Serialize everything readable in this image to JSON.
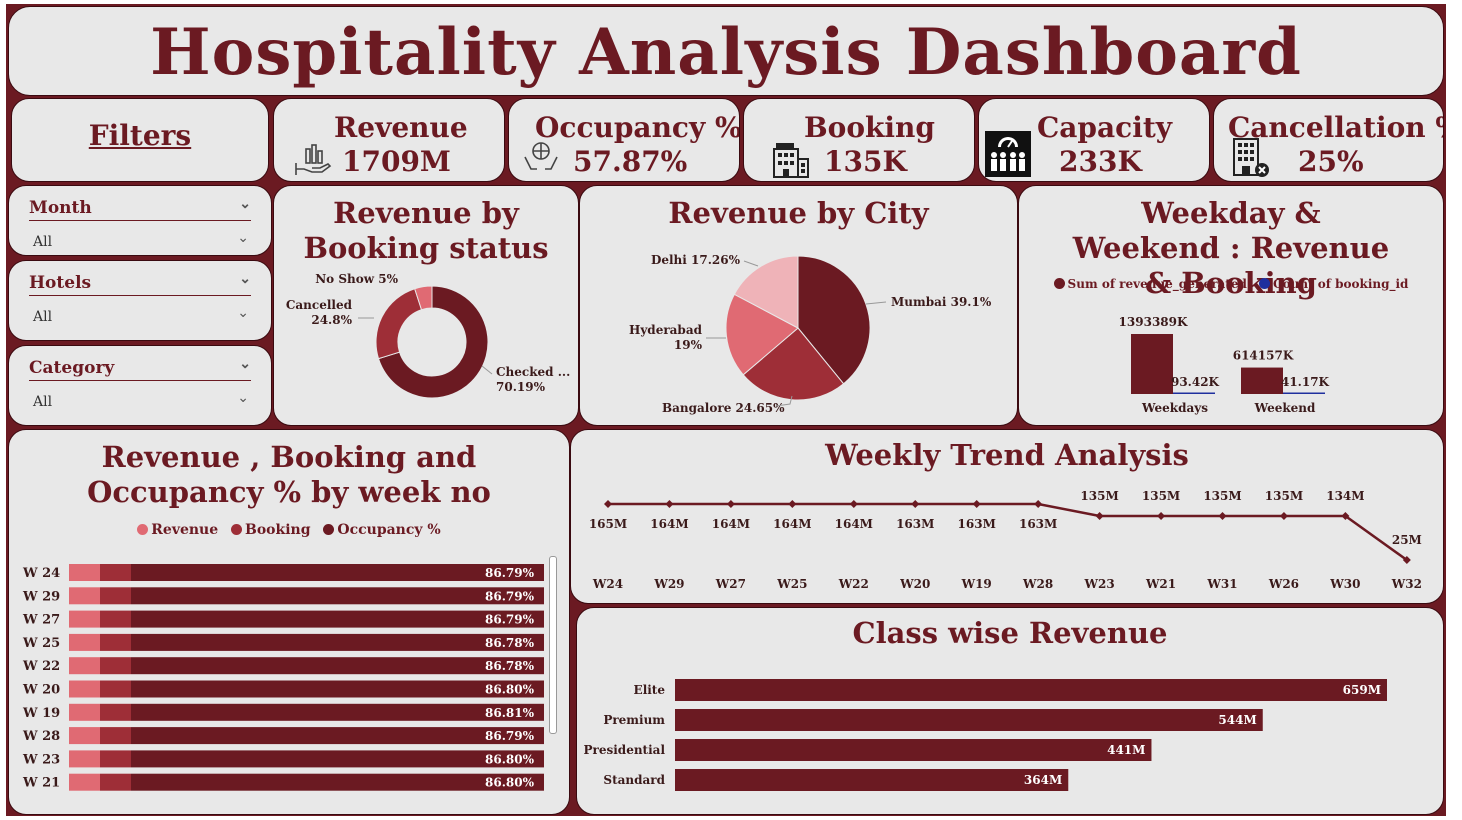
{
  "title": "Hospitality Analysis Dashboard",
  "colors": {
    "maroon": "#6b1a22",
    "mid": "#9e2e37",
    "light": "#e06a73",
    "pale": "#efb3b8",
    "blue": "#1f2f9e"
  },
  "filters": {
    "title": "Filters",
    "slicers": [
      {
        "label": "Month",
        "value": "All"
      },
      {
        "label": "Hotels",
        "value": "All"
      },
      {
        "label": "Category",
        "value": "All"
      }
    ]
  },
  "kpis": [
    {
      "label": "Revenue",
      "value": "1709M",
      "icon": "hand-money-icon"
    },
    {
      "label": "Occupancy %",
      "value": "57.87%",
      "icon": "globe-hands-icon"
    },
    {
      "label": "Booking",
      "value": "135K",
      "icon": "hotel-building-icon"
    },
    {
      "label": "Capacity",
      "value": "233K",
      "icon": "people-gauge-icon"
    },
    {
      "label": "Cancellation %",
      "value": "25%",
      "icon": "hotel-cancel-icon"
    }
  ],
  "chart_data": [
    {
      "id": "booking_status",
      "type": "donut",
      "title": "Revenue by Booking status",
      "slices": [
        {
          "label": "Checked ...",
          "value": 70.19,
          "display": "70.19%"
        },
        {
          "label": "Cancelled",
          "value": 24.8,
          "display": "24.8%"
        },
        {
          "label": "No Show",
          "value": 5,
          "display": "5%"
        }
      ]
    },
    {
      "id": "city",
      "type": "pie",
      "title": "Revenue by City",
      "slices": [
        {
          "label": "Mumbai",
          "value": 39.1,
          "display": "39.1%"
        },
        {
          "label": "Bangalore",
          "value": 24.65,
          "display": "24.65%"
        },
        {
          "label": "Hyderabad",
          "value": 19,
          "display": "19%"
        },
        {
          "label": "Delhi",
          "value": 17.26,
          "display": "17.26%"
        }
      ]
    },
    {
      "id": "weekday_weekend",
      "type": "bar",
      "title": "Weekday & Weekend : Revenue & Booking",
      "categories": [
        "Weekdays",
        "Weekend"
      ],
      "series": [
        {
          "name": "Sum of revenue_generated",
          "values": [
            1393389,
            614157
          ],
          "labels": [
            "1393389K",
            "614157K"
          ]
        },
        {
          "name": "Count of booking_id",
          "values": [
            93.42,
            41.17
          ],
          "labels": [
            "93.42K",
            "41.17K"
          ]
        }
      ]
    },
    {
      "id": "week_occupancy",
      "type": "bar",
      "orientation": "horizontal",
      "title": "Revenue , Booking and Occupancy % by week no",
      "legend": [
        "Revenue",
        "Booking",
        "Occupancy %"
      ],
      "categories": [
        "W 24",
        "W 29",
        "W 27",
        "W 25",
        "W 22",
        "W 20",
        "W 19",
        "W 28",
        "W 23",
        "W 21"
      ],
      "occupancy": [
        "86.79%",
        "86.79%",
        "86.79%",
        "86.78%",
        "86.78%",
        "86.80%",
        "86.81%",
        "86.79%",
        "86.80%",
        "86.80%"
      ]
    },
    {
      "id": "weekly_trend",
      "type": "line",
      "title": "Weekly Trend Analysis",
      "categories": [
        "W24",
        "W29",
        "W27",
        "W25",
        "W22",
        "W20",
        "W19",
        "W28",
        "W23",
        "W21",
        "W31",
        "W26",
        "W30",
        "W32"
      ],
      "values": [
        165,
        164,
        164,
        164,
        164,
        163,
        163,
        163,
        135,
        135,
        135,
        135,
        134,
        25
      ],
      "labels": [
        "165M",
        "164M",
        "164M",
        "164M",
        "164M",
        "163M",
        "163M",
        "163M",
        "135M",
        "135M",
        "135M",
        "135M",
        "134M",
        "25M"
      ]
    },
    {
      "id": "class_revenue",
      "type": "bar",
      "orientation": "horizontal",
      "title": "Class wise Revenue",
      "categories": [
        "Elite",
        "Premium",
        "Presidential",
        "Standard"
      ],
      "values": [
        659,
        544,
        441,
        364
      ],
      "labels": [
        "659M",
        "544M",
        "441M",
        "364M"
      ]
    }
  ]
}
